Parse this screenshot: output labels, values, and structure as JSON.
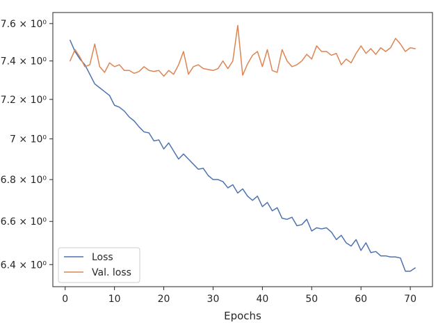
{
  "chart_data": {
    "type": "line",
    "xlabel": "Epochs",
    "ylabel": "",
    "y_scale": "log",
    "xlim": [
      -2.5,
      74.5
    ],
    "ylim": [
      6.3,
      7.66
    ],
    "x_ticks": [
      0,
      10,
      20,
      30,
      40,
      50,
      60,
      70
    ],
    "y_ticks": [
      {
        "value": 6.4,
        "label": "6.4 × 10⁰"
      },
      {
        "value": 6.6,
        "label": "6.6 × 10⁰"
      },
      {
        "value": 6.8,
        "label": "6.8 × 10⁰"
      },
      {
        "value": 7.0,
        "label": "7 × 10⁰"
      },
      {
        "value": 7.2,
        "label": "7.2 × 10⁰"
      },
      {
        "value": 7.4,
        "label": "7.4 × 10⁰"
      },
      {
        "value": 7.6,
        "label": "7.6 × 10⁰"
      }
    ],
    "grid": false,
    "legend_position": "lower-left",
    "x": [
      1,
      2,
      3,
      4,
      5,
      6,
      7,
      8,
      9,
      10,
      11,
      12,
      13,
      14,
      15,
      16,
      17,
      18,
      19,
      20,
      21,
      22,
      23,
      24,
      25,
      26,
      27,
      28,
      29,
      30,
      31,
      32,
      33,
      34,
      35,
      36,
      37,
      38,
      39,
      40,
      41,
      42,
      43,
      44,
      45,
      46,
      47,
      48,
      49,
      50,
      51,
      52,
      53,
      54,
      55,
      56,
      57,
      58,
      59,
      60,
      61,
      62,
      63,
      64,
      65,
      66,
      67,
      68,
      69,
      70,
      71
    ],
    "series": [
      {
        "name": "Loss",
        "color": "#4c72b0",
        "values": [
          7.51,
          7.45,
          7.41,
          7.38,
          7.33,
          7.28,
          7.26,
          7.24,
          7.22,
          7.17,
          7.16,
          7.14,
          7.11,
          7.09,
          7.06,
          7.035,
          7.03,
          6.99,
          6.995,
          6.95,
          6.98,
          6.94,
          6.9,
          6.925,
          6.9,
          6.875,
          6.85,
          6.855,
          6.82,
          6.8,
          6.8,
          6.79,
          6.76,
          6.775,
          6.735,
          6.755,
          6.72,
          6.7,
          6.72,
          6.67,
          6.69,
          6.65,
          6.665,
          6.615,
          6.61,
          6.62,
          6.58,
          6.585,
          6.61,
          6.555,
          6.57,
          6.565,
          6.57,
          6.55,
          6.515,
          6.535,
          6.5,
          6.485,
          6.515,
          6.465,
          6.5,
          6.455,
          6.46,
          6.44,
          6.44,
          6.435,
          6.435,
          6.43,
          6.37,
          6.37,
          6.385
        ]
      },
      {
        "name": "Val. loss",
        "color": "#dd8452",
        "values": [
          7.4,
          7.46,
          7.42,
          7.37,
          7.38,
          7.49,
          7.37,
          7.34,
          7.39,
          7.37,
          7.38,
          7.35,
          7.35,
          7.335,
          7.345,
          7.37,
          7.35,
          7.345,
          7.35,
          7.32,
          7.35,
          7.33,
          7.38,
          7.45,
          7.33,
          7.37,
          7.38,
          7.36,
          7.355,
          7.35,
          7.36,
          7.4,
          7.36,
          7.4,
          7.59,
          7.325,
          7.385,
          7.43,
          7.45,
          7.37,
          7.46,
          7.35,
          7.34,
          7.46,
          7.4,
          7.37,
          7.38,
          7.4,
          7.435,
          7.41,
          7.48,
          7.45,
          7.45,
          7.43,
          7.44,
          7.38,
          7.41,
          7.39,
          7.44,
          7.48,
          7.44,
          7.465,
          7.435,
          7.47,
          7.45,
          7.47,
          7.52,
          7.49,
          7.45,
          7.47,
          7.465
        ]
      }
    ]
  }
}
